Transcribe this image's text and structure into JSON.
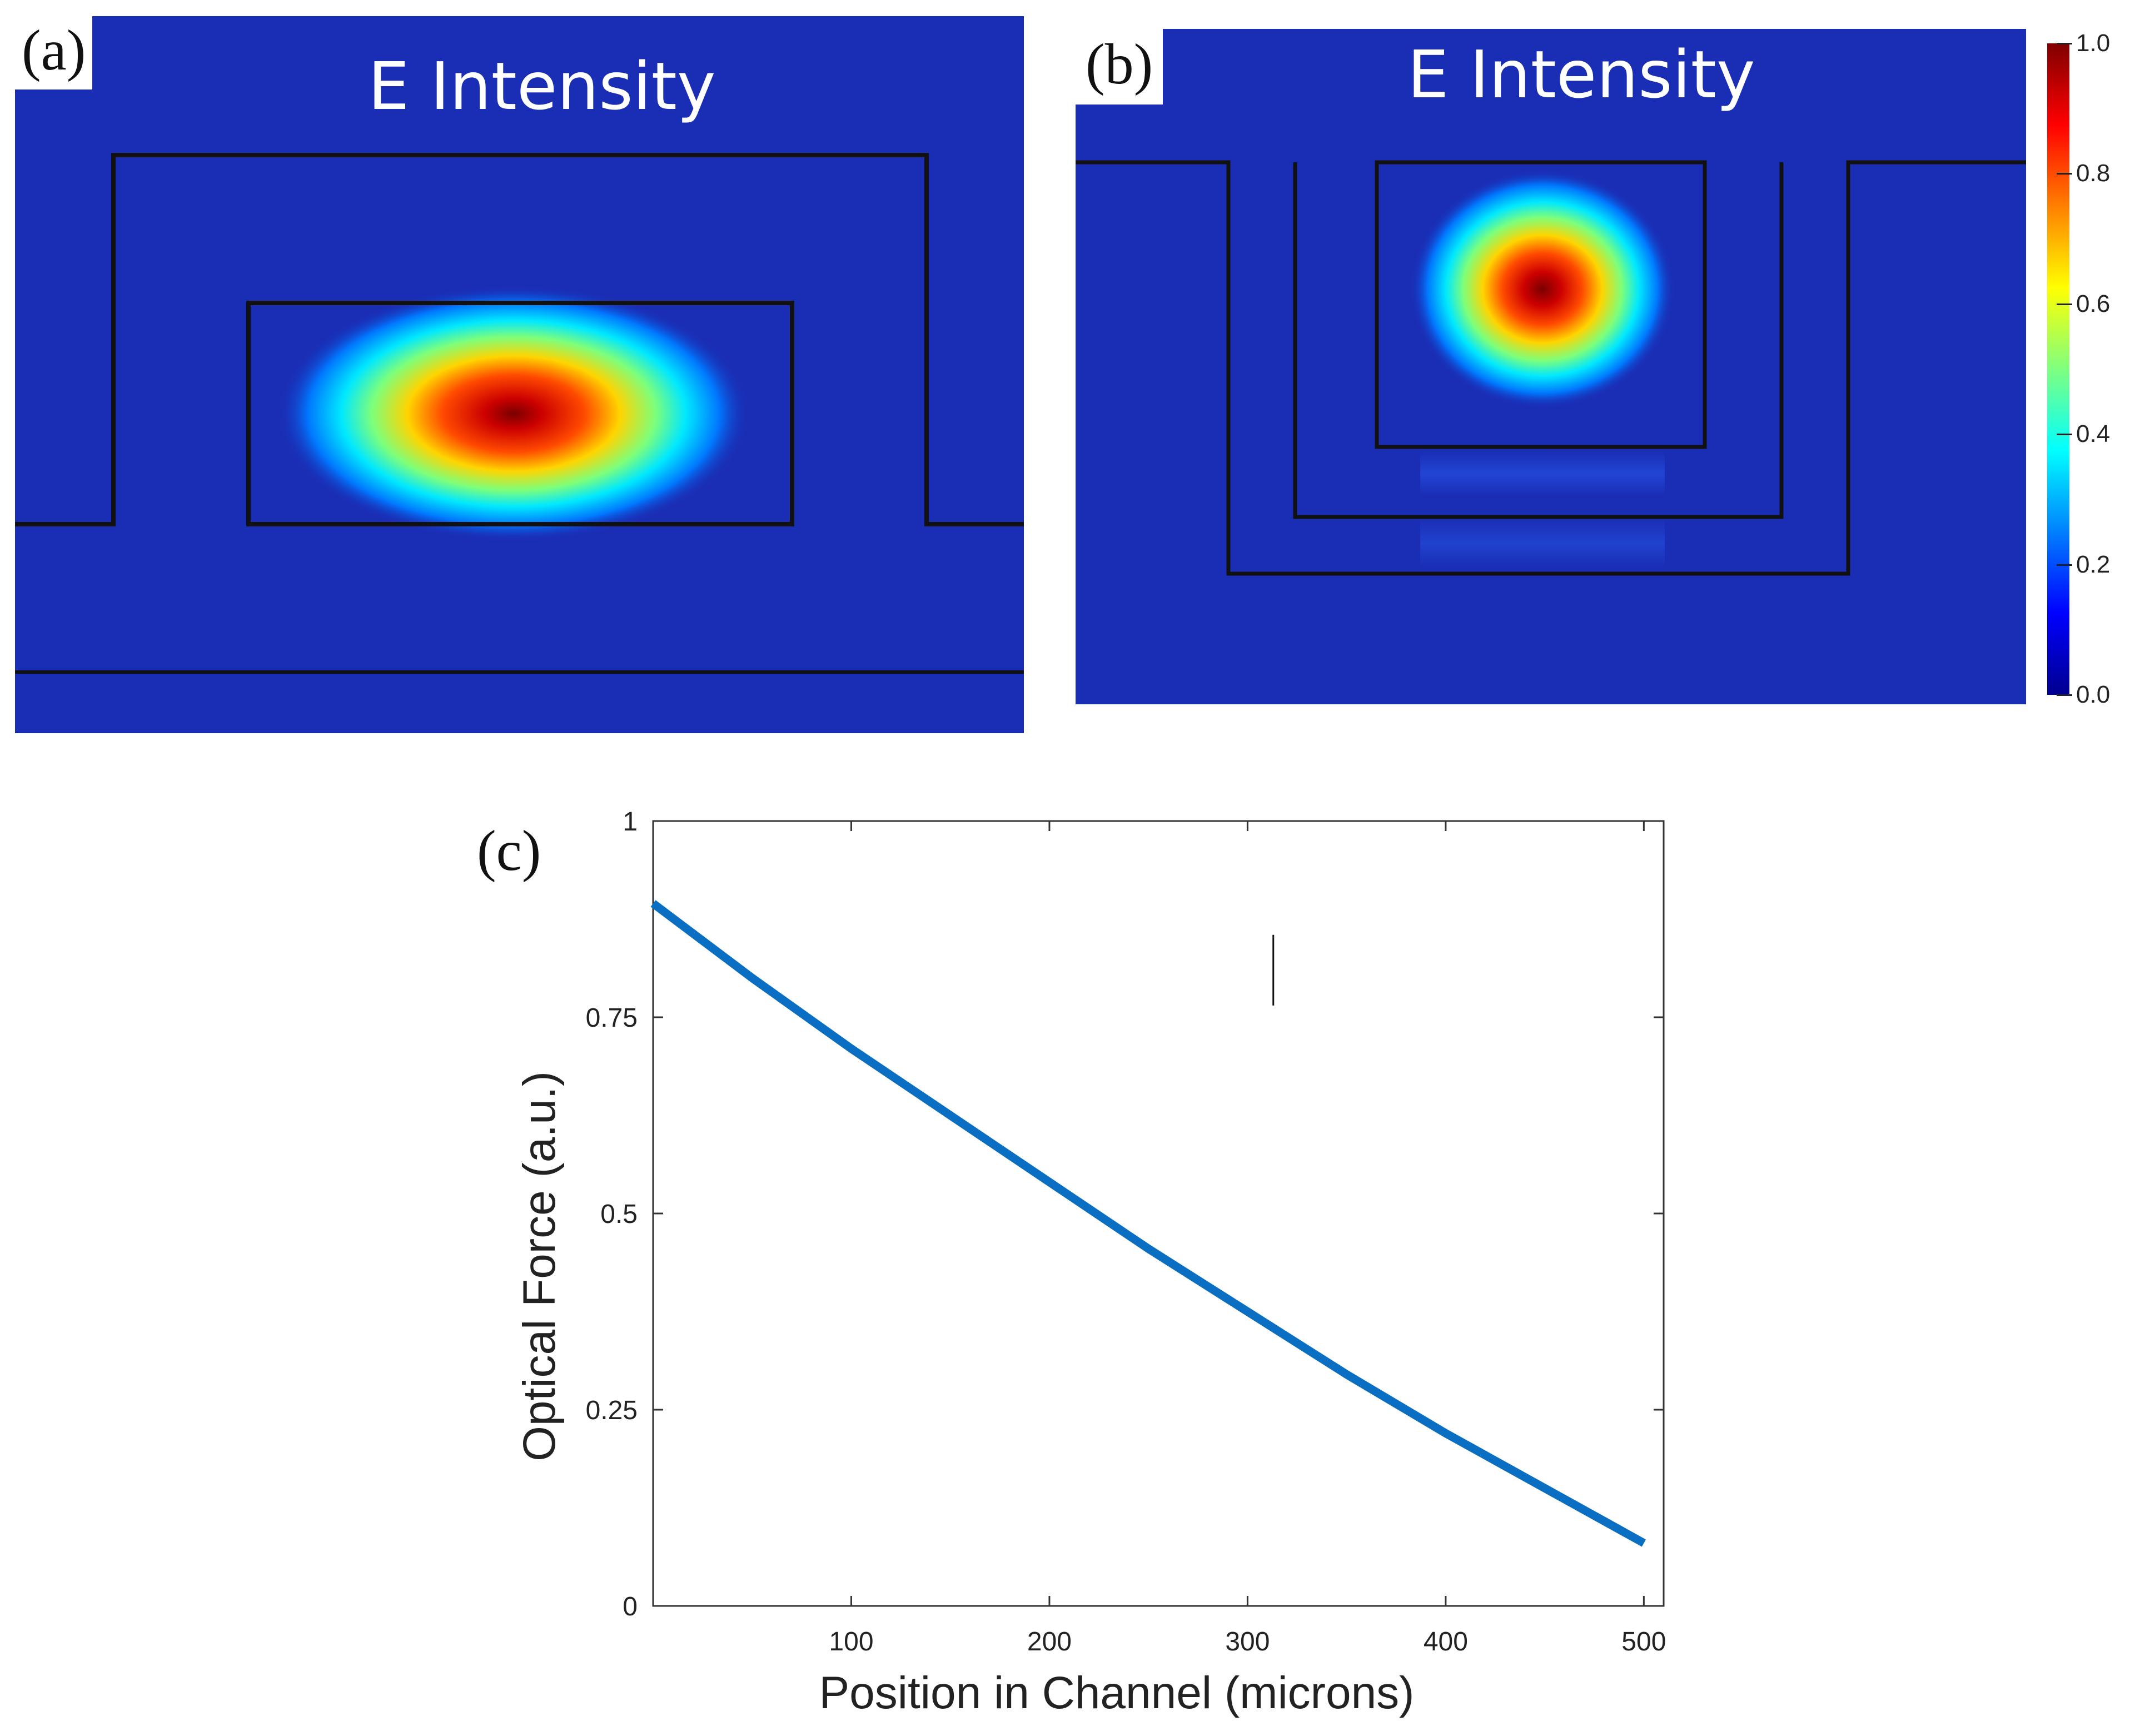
{
  "panels": {
    "a": {
      "letter": "(a)",
      "title": "E Intensity"
    },
    "b": {
      "letter": "(b)",
      "title": "E Intensity"
    },
    "c": {
      "letter": "(c)"
    }
  },
  "colorbar": {
    "ticks": [
      "0.0",
      "0.2",
      "0.4",
      "0.6",
      "0.8",
      "1.0"
    ],
    "colormap": "jet",
    "range": [
      0,
      1
    ]
  },
  "colors": {
    "field_background": "#1a2db5",
    "series": "#0a6fc2",
    "outline": "#111111"
  },
  "chart_data": {
    "type": "line",
    "title": "",
    "xlabel": "Position in Channel (microns)",
    "ylabel": "Optical Force (a.u.)",
    "xlim": [
      0,
      510
    ],
    "ylim": [
      0,
      1
    ],
    "xticks": [
      100,
      200,
      300,
      400,
      500
    ],
    "xtick_labels": [
      "100",
      "200",
      "300",
      "400",
      "500"
    ],
    "yticks": [
      0,
      0.25,
      0.5,
      0.75,
      1
    ],
    "ytick_labels": [
      "0",
      "0.25",
      "0.5",
      "0.75",
      "1"
    ],
    "grid": false,
    "series": [
      {
        "name": "Optical Force",
        "x": [
          0,
          50,
          100,
          150,
          200,
          250,
          300,
          350,
          400,
          450,
          500
        ],
        "values": [
          0.895,
          0.8,
          0.71,
          0.625,
          0.54,
          0.455,
          0.375,
          0.295,
          0.22,
          0.15,
          0.08
        ]
      }
    ],
    "annotations": [
      {
        "type": "vertical-marker",
        "x": 313,
        "y_from": 0.765,
        "y_to": 0.855
      }
    ]
  }
}
